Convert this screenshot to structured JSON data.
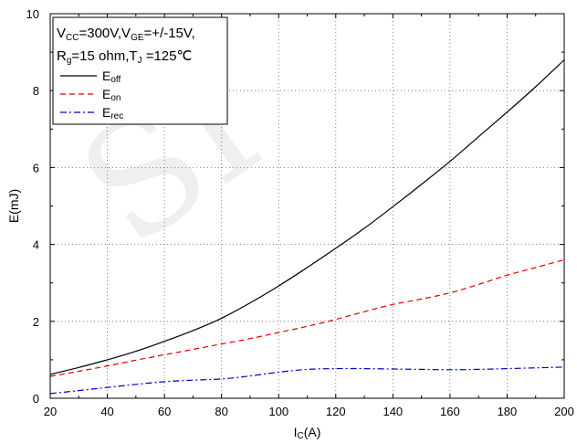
{
  "chart_data": {
    "type": "line",
    "xlabel": {
      "main": "I",
      "sub": "C",
      "tail": "(A)"
    },
    "ylabel": "E(mJ)",
    "xlim": [
      20,
      200
    ],
    "ylim": [
      0,
      10
    ],
    "xticks": [
      "20",
      "40",
      "60",
      "80",
      "100",
      "120",
      "140",
      "160",
      "180",
      "200"
    ],
    "yticks": [
      "0",
      "2",
      "4",
      "6",
      "8",
      "10"
    ],
    "grid": true,
    "legend_position": "top-left",
    "conditions": {
      "line1": [
        {
          "t": "V",
          "sub": false
        },
        {
          "t": "CC",
          "sub": true
        },
        {
          "t": "=300V,V",
          "sub": false
        },
        {
          "t": "GE",
          "sub": true
        },
        {
          "t": "=+/-15V,",
          "sub": false
        }
      ],
      "line2": [
        {
          "t": "R",
          "sub": false
        },
        {
          "t": "g",
          "sub": true
        },
        {
          "t": "=15 ohm,T",
          "sub": false
        },
        {
          "t": "J",
          "sub": true
        },
        {
          "t": " =125℃",
          "sub": false
        }
      ]
    },
    "series": [
      {
        "name": "Eoff",
        "name_main": "E",
        "name_sub": "off",
        "color": "#000000",
        "dash": "solid",
        "x": [
          20,
          30,
          40,
          50,
          60,
          70,
          80,
          90,
          100,
          110,
          120,
          130,
          140,
          150,
          160,
          170,
          180,
          190,
          200
        ],
        "y": [
          0.62,
          0.8,
          1.0,
          1.22,
          1.48,
          1.76,
          2.08,
          2.48,
          2.92,
          3.4,
          3.9,
          4.42,
          4.98,
          5.56,
          6.16,
          6.8,
          7.44,
          8.1,
          8.8
        ]
      },
      {
        "name": "Eon",
        "name_main": "E",
        "name_sub": "on",
        "color": "#dd0000",
        "dash": "dashed",
        "x": [
          20,
          30,
          40,
          50,
          60,
          70,
          80,
          90,
          100,
          110,
          120,
          130,
          140,
          150,
          160,
          170,
          180,
          190,
          200
        ],
        "y": [
          0.57,
          0.7,
          0.84,
          0.99,
          1.13,
          1.27,
          1.41,
          1.55,
          1.71,
          1.87,
          2.05,
          2.25,
          2.44,
          2.58,
          2.74,
          2.96,
          3.2,
          3.4,
          3.6
        ]
      },
      {
        "name": "Erec",
        "name_main": "E",
        "name_sub": "rec",
        "color": "#0000cc",
        "dash": "dashdot",
        "x": [
          20,
          30,
          40,
          50,
          60,
          70,
          80,
          90,
          100,
          110,
          120,
          130,
          140,
          150,
          160,
          170,
          180,
          190,
          200
        ],
        "y": [
          0.12,
          0.2,
          0.28,
          0.36,
          0.43,
          0.47,
          0.5,
          0.58,
          0.68,
          0.75,
          0.77,
          0.77,
          0.76,
          0.75,
          0.74,
          0.75,
          0.77,
          0.79,
          0.81
        ]
      }
    ]
  },
  "colors": {
    "grid": "#666666",
    "frame": "#000000",
    "watermark": "#000000"
  },
  "watermark": {
    "text": "SI"
  }
}
